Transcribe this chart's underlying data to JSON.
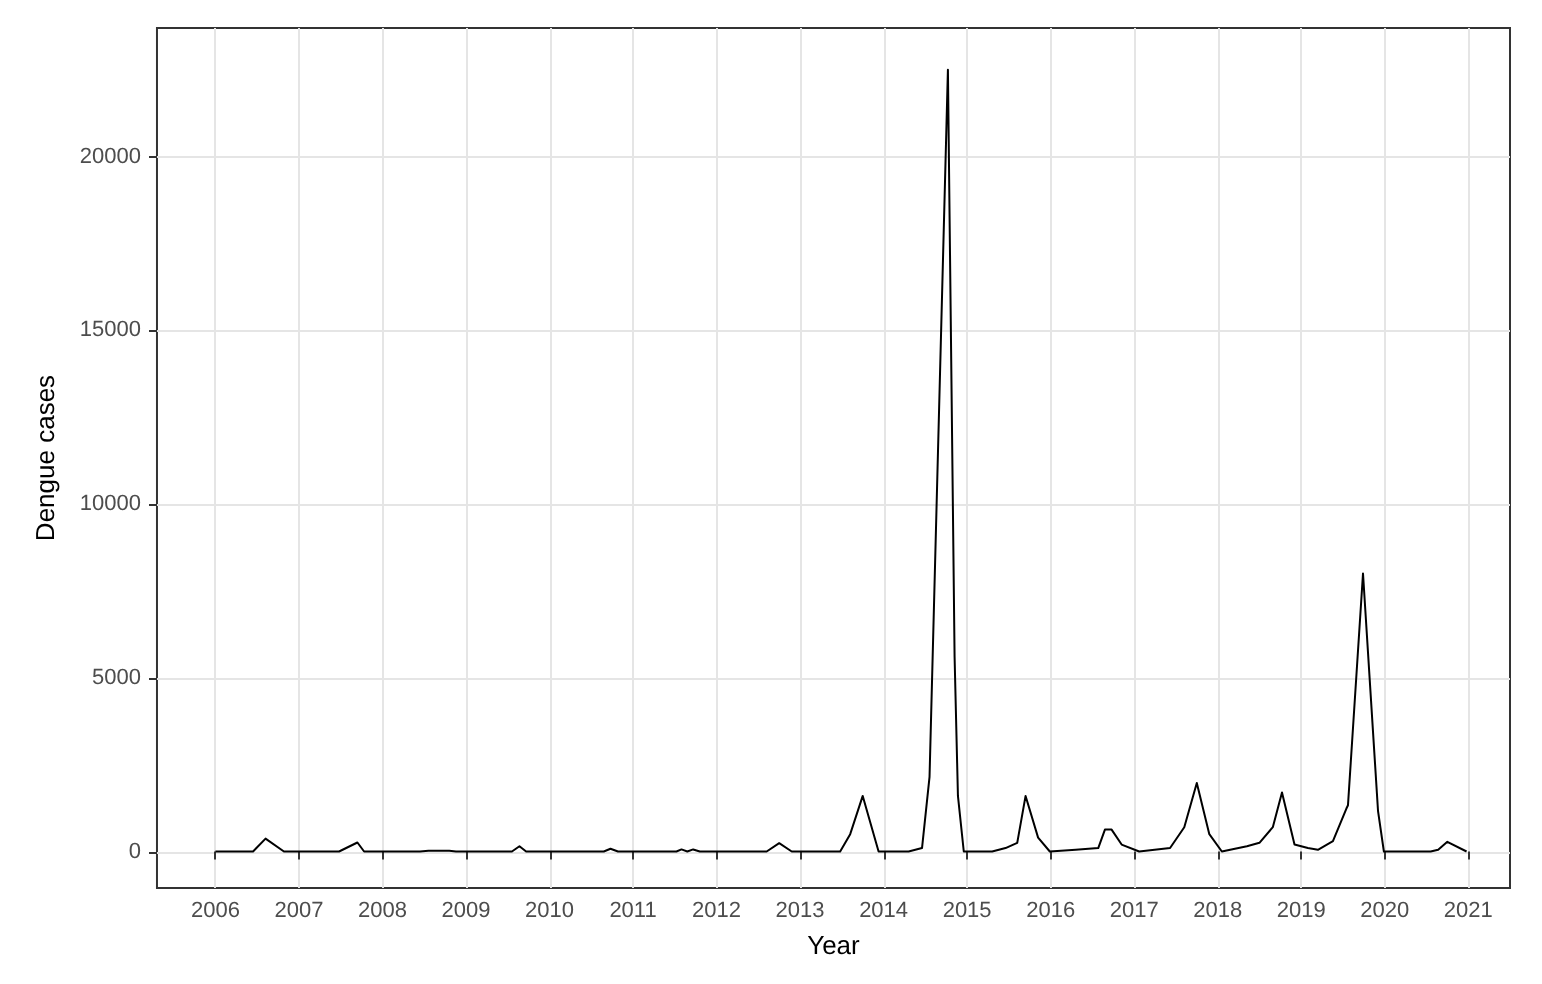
{
  "chart_data": {
    "type": "line",
    "xlabel": "Year",
    "ylabel": "Dengue cases",
    "x": [
      2006.0,
      2006.45,
      2006.6,
      2006.82,
      2007.48,
      2007.7,
      2007.78,
      2008.45,
      2008.55,
      2008.8,
      2008.88,
      2009.55,
      2009.64,
      2009.72,
      2010.65,
      2010.73,
      2010.82,
      2011.52,
      2011.58,
      2011.65,
      2011.72,
      2011.8,
      2012.6,
      2012.75,
      2012.9,
      2013.3,
      2013.48,
      2013.6,
      2013.75,
      2013.94,
      2014.3,
      2014.46,
      2014.55,
      2014.77,
      2014.85,
      2014.89,
      2014.96,
      2015.3,
      2015.46,
      2015.6,
      2015.7,
      2015.85,
      2015.99,
      2016.3,
      2016.57,
      2016.65,
      2016.73,
      2016.85,
      2017.06,
      2017.43,
      2017.6,
      2017.75,
      2017.9,
      2018.05,
      2018.35,
      2018.5,
      2018.66,
      2018.77,
      2018.92,
      2019.08,
      2019.2,
      2019.38,
      2019.54,
      2019.56,
      2019.74,
      2019.92,
      2019.99,
      2020.55,
      2020.64,
      2020.75,
      2020.98
    ],
    "values": [
      0,
      0,
      370,
      0,
      0,
      260,
      0,
      0,
      20,
      20,
      0,
      0,
      150,
      0,
      0,
      80,
      0,
      0,
      60,
      0,
      60,
      0,
      0,
      240,
      0,
      0,
      0,
      500,
      1600,
      0,
      0,
      100,
      2150,
      22500,
      5600,
      1600,
      0,
      0,
      100,
      250,
      1600,
      400,
      0,
      50,
      100,
      630,
      630,
      200,
      0,
      100,
      700,
      1970,
      500,
      0,
      150,
      250,
      700,
      1700,
      200,
      100,
      50,
      300,
      1230,
      1330,
      8000,
      1160,
      0,
      0,
      50,
      280,
      0
    ],
    "color": "#000000",
    "xlim": [
      2005.3,
      2021.5
    ],
    "xticks": [
      2006,
      2007,
      2008,
      2009,
      2010,
      2011,
      2012,
      2013,
      2014,
      2015,
      2016,
      2017,
      2018,
      2019,
      2020,
      2021
    ],
    "ylim": [
      -1050,
      23700
    ],
    "yticks": [
      0,
      5000,
      10000,
      15000,
      20000
    ],
    "grid": true,
    "marker": "none",
    "line_style": "solid"
  }
}
